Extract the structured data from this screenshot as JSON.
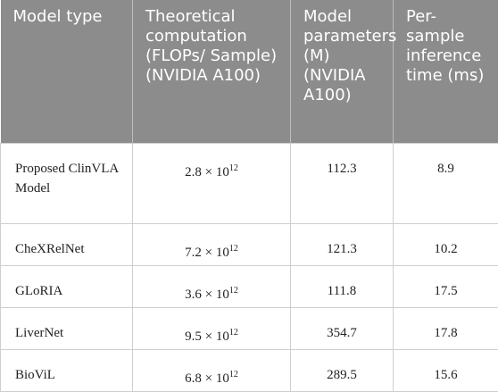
{
  "table": {
    "header": [
      "Model type",
      "Theoretical computation (FLOPs/ Sample) (NVIDIA A100)",
      "Model parameters (M) (NVIDIA A100)",
      "Per-sample inference time (ms)"
    ],
    "rows": [
      [
        {
          "text": "Proposed ClinVLA Model"
        },
        {
          "mantissa": "2.8 × 10",
          "exponent": "12"
        },
        {
          "text": "112.3"
        },
        {
          "text": "8.9"
        }
      ],
      [
        {
          "text": "CheXRelNet"
        },
        {
          "mantissa": "7.2 × 10",
          "exponent": "12"
        },
        {
          "text": "121.3"
        },
        {
          "text": "10.2"
        }
      ],
      [
        {
          "text": "GLoRIA"
        },
        {
          "mantissa": "3.6 × 10",
          "exponent": "12"
        },
        {
          "text": "111.8"
        },
        {
          "text": "17.5"
        }
      ],
      [
        {
          "text": "LiverNet"
        },
        {
          "mantissa": "9.5 × 10",
          "exponent": "12"
        },
        {
          "text": "354.7"
        },
        {
          "text": "17.8"
        }
      ],
      [
        {
          "text": "BioViL"
        },
        {
          "mantissa": "6.8 × 10",
          "exponent": "12"
        },
        {
          "text": "289.5"
        },
        {
          "text": "15.6"
        }
      ]
    ]
  }
}
